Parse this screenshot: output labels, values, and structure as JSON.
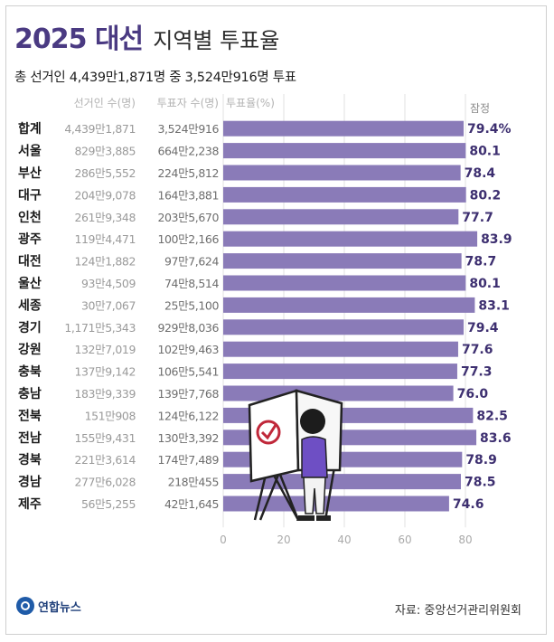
{
  "header": {
    "title_main": "2025 대선",
    "title_sub": "지역별 투표율",
    "subtitle": "총 선거인 4,439만1,871명 중 3,524만916명 투표"
  },
  "source": "자료: 중앙선거관리위원회",
  "logo_text": "연합뉴스",
  "chart_data": {
    "type": "bar",
    "orientation": "horizontal",
    "xlim": [
      0,
      80
    ],
    "xticks": [
      0,
      20,
      40,
      60,
      80
    ],
    "grid": true,
    "columns": {
      "electors": "선거인 수(명)",
      "voters": "투표자 수(명)",
      "rate": "투표율(%)",
      "provisional": "잠정"
    },
    "categories": [
      "합계",
      "서울",
      "부산",
      "대구",
      "인천",
      "광주",
      "대전",
      "울산",
      "세종",
      "경기",
      "강원",
      "충북",
      "충남",
      "전북",
      "전남",
      "경북",
      "경남",
      "제주"
    ],
    "electors": [
      "4,439만1,871",
      "829만3,885",
      "286만5,552",
      "204만9,078",
      "261만9,348",
      "119만4,471",
      "124만1,882",
      "93만4,509",
      "30만7,067",
      "1,171만5,343",
      "132만7,019",
      "137만9,142",
      "183만9,339",
      "151만908",
      "155만9,431",
      "221만3,614",
      "277만6,028",
      "56만5,255"
    ],
    "voters": [
      "3,524만916",
      "664만2,238",
      "224만5,812",
      "164만3,881",
      "203만5,670",
      "100만2,166",
      "97만7,624",
      "74만8,514",
      "25만5,100",
      "929만8,036",
      "102만9,463",
      "106만5,541",
      "139만7,768",
      "124만6,122",
      "130만3,392",
      "174만7,489",
      "218만455",
      "42만1,645"
    ],
    "values": [
      79.4,
      80.1,
      78.4,
      80.2,
      77.7,
      83.9,
      78.7,
      80.1,
      83.1,
      79.4,
      77.6,
      77.3,
      76.0,
      82.5,
      83.6,
      78.9,
      78.5,
      74.6
    ],
    "value_labels": [
      "79.4%",
      "80.1",
      "78.4",
      "80.2",
      "77.7",
      "83.9",
      "78.7",
      "80.1",
      "83.1",
      "79.4",
      "77.6",
      "77.3",
      "76.0",
      "82.5",
      "83.6",
      "78.9",
      "78.5",
      "74.6"
    ],
    "bar_color": "#8a7bb8",
    "label_color": "#3d2f70"
  }
}
